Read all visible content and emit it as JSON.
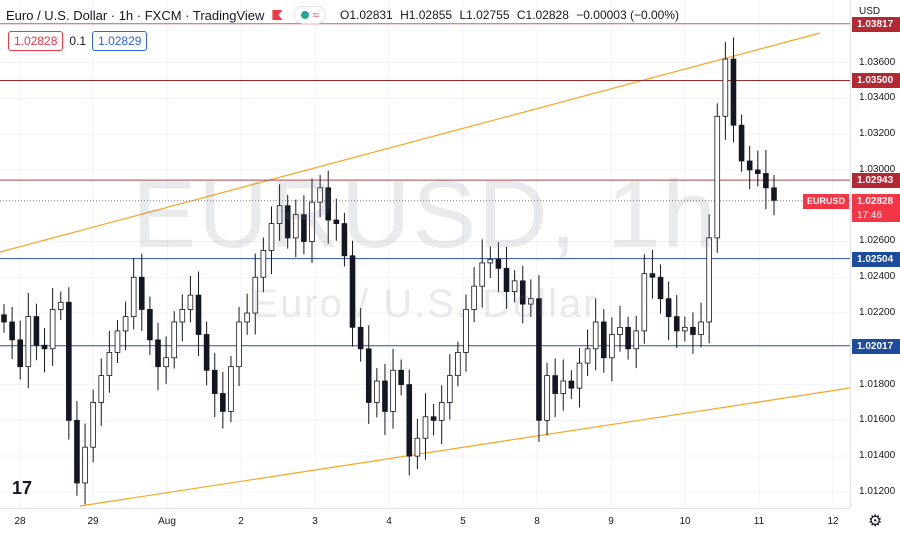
{
  "header": {
    "symbol": "Euro / U.S. Dollar · 1h · FXCM · TradingView",
    "ohlc": {
      "o": "O1.02831",
      "h": "H1.02855",
      "l": "L1.02755",
      "c": "C1.02828",
      "chg": "−0.00003 (−0.00%)"
    },
    "wave_icon": "≈"
  },
  "trade": {
    "sell": "1.02828",
    "spread": "0.1",
    "buy": "1.02829"
  },
  "watermark": {
    "line1": "EURUSD, 1h",
    "line2": "Euro / U.S. Dollar"
  },
  "currency": "USD",
  "y_labels": [
    "1.03600",
    "1.03400",
    "1.03200",
    "1.03000",
    "1.02600",
    "1.02400",
    "1.02200",
    "1.01800",
    "1.01600",
    "1.01400",
    "1.01200"
  ],
  "levels": [
    {
      "label": "1.03817",
      "value": 1.03817,
      "color": "#b22833",
      "line": "#c06060"
    },
    {
      "label": "1.03500",
      "value": 1.035,
      "color": "#b22833",
      "line": "#9b2a2a"
    },
    {
      "label": "1.02943",
      "value": 1.02943,
      "color": "#b22833",
      "line": "#a04848"
    },
    {
      "label": "1.02504",
      "value": 1.02504,
      "color": "#1e4b9c",
      "line": "#2e4f9a"
    },
    {
      "label": "1.02017",
      "value": 1.02017,
      "color": "#1e4b9c",
      "line": "#2e4f9a"
    }
  ],
  "current": {
    "symbol": "EURUSD",
    "price": "1.02828",
    "timer": "17:46",
    "value": 1.02828
  },
  "x_labels": [
    "28",
    "29",
    "Aug",
    "2",
    "3",
    "4",
    "5",
    "8",
    "9",
    "10",
    "11",
    "12"
  ],
  "colors": {
    "up": "#26a69a",
    "down": "#ef5350",
    "channel": "#f5a623",
    "candle": "#131722"
  },
  "chart_data": {
    "type": "candlestick",
    "title": "Euro / U.S. Dollar · 1h · FXCM",
    "ylim": [
      1.0111,
      1.0395
    ],
    "series_close": [
      1.0215,
      1.0205,
      1.019,
      1.0218,
      1.0202,
      1.02,
      1.0222,
      1.0226,
      1.016,
      1.0125,
      1.0145,
      1.017,
      1.0185,
      1.0198,
      1.021,
      1.0218,
      1.024,
      1.0222,
      1.0205,
      1.019,
      1.0195,
      1.0215,
      1.0222,
      1.023,
      1.0208,
      1.0188,
      1.0175,
      1.0165,
      1.019,
      1.0215,
      1.022,
      1.024,
      1.0255,
      1.027,
      1.028,
      1.0262,
      1.0275,
      1.026,
      1.0282,
      1.029,
      1.0272,
      1.027,
      1.0252,
      1.0212,
      1.02,
      1.017,
      1.0182,
      1.0165,
      1.0188,
      1.018,
      1.014,
      1.015,
      1.0162,
      1.016,
      1.017,
      1.0185,
      1.0198,
      1.0222,
      1.0235,
      1.0248,
      1.025,
      1.0245,
      1.0232,
      1.0238,
      1.0225,
      1.0228,
      1.016,
      1.0185,
      1.0175,
      1.0182,
      1.0178,
      1.0192,
      1.02,
      1.0215,
      1.0195,
      1.0208,
      1.0212,
      1.02,
      1.021,
      1.0242,
      1.024,
      1.0228,
      1.0218,
      1.021,
      1.0212,
      1.0208,
      1.0215,
      1.0262,
      1.033,
      1.0362,
      1.0325,
      1.0305,
      1.03,
      1.0298,
      1.029,
      1.0283
    ]
  }
}
